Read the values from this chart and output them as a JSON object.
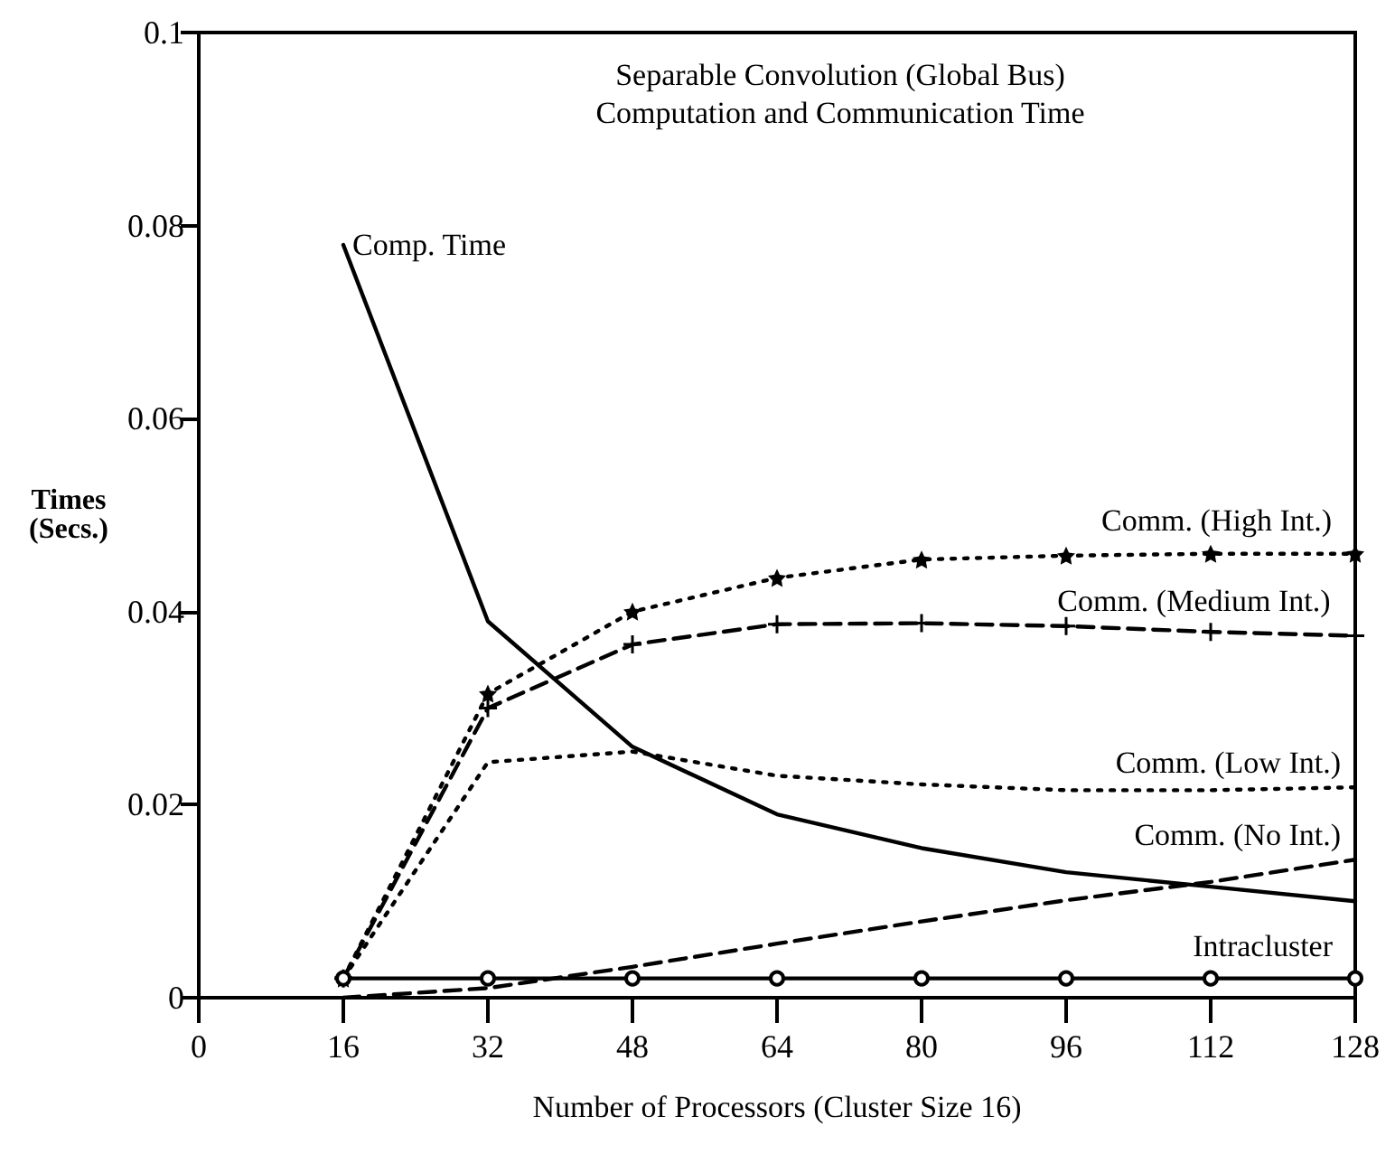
{
  "chart_data": {
    "type": "line",
    "title": "Separable Convolution (Global Bus)",
    "subtitle": "Computation and Communication Time",
    "xlabel": "Number of Processors (Cluster Size 16)",
    "ylabel": "Times\n(Secs.)",
    "xlim": [
      0,
      128
    ],
    "xticks": [
      0,
      16,
      32,
      48,
      64,
      80,
      96,
      112,
      128
    ],
    "ylim": [
      0,
      0.1
    ],
    "yticks": [
      0,
      0.02,
      0.04,
      0.06,
      0.08,
      0.1
    ],
    "grid": false,
    "legend": false,
    "x": [
      16,
      32,
      48,
      64,
      80,
      96,
      112,
      128
    ],
    "series": [
      {
        "name": "Comp. Time",
        "color": "#000000",
        "marker": "none",
        "line_style": "solid",
        "values": [
          0.078,
          0.039,
          0.026,
          0.019,
          0.0155,
          0.013,
          0.0115,
          0.01
        ]
      },
      {
        "name": "Comm. (High Int.)",
        "color": "#000000",
        "marker": "star",
        "line_style": "dotted",
        "values": [
          0.002,
          0.0315,
          0.04,
          0.0435,
          0.0454,
          0.0458,
          0.046,
          0.046
        ]
      },
      {
        "name": "Comm. (Medium Int.)",
        "color": "#000000",
        "marker": "cross",
        "line_style": "dashed",
        "values": [
          0.002,
          0.03,
          0.0366,
          0.0387,
          0.0388,
          0.0385,
          0.0379,
          0.0375
        ]
      },
      {
        "name": "Comm. (Low Int.)",
        "color": "#000000",
        "marker": "none",
        "line_style": "dotted",
        "values": [
          0.002,
          0.0244,
          0.0255,
          0.023,
          0.0221,
          0.0215,
          0.0215,
          0.0218
        ]
      },
      {
        "name": "Comm. (No Int.)",
        "color": "#000000",
        "marker": "none",
        "line_style": "dashed",
        "values": [
          0.0,
          0.001,
          0.0032,
          0.0056,
          0.0079,
          0.0101,
          0.012,
          0.0143
        ]
      },
      {
        "name": "Intracluster",
        "color": "#000000",
        "marker": "circle",
        "line_style": "solid",
        "values": [
          0.002,
          0.002,
          0.002,
          0.002,
          0.002,
          0.002,
          0.002,
          0.002
        ]
      }
    ]
  }
}
